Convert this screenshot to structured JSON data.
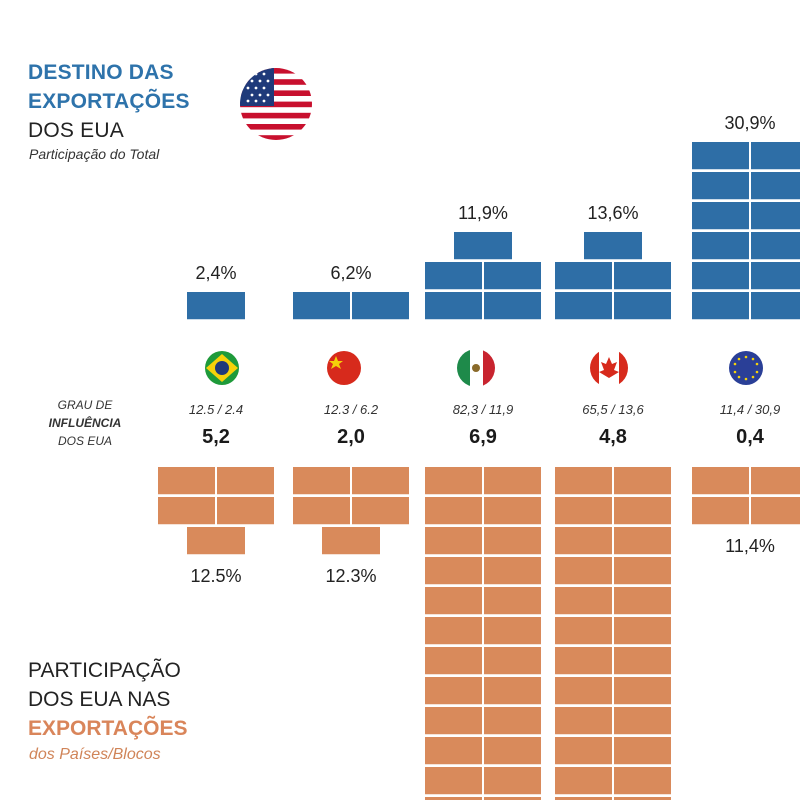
{
  "header": {
    "title_lines": [
      "DESTINO DAS",
      "EXPORTAÇÕES",
      "DOS EUA"
    ],
    "subtitle": "Participação do Total"
  },
  "influence_label": {
    "line1": "GRAU DE",
    "line2": "INFLUÊNCIA",
    "line3": "DOS EUA"
  },
  "footer": {
    "title_lines": [
      "PARTICIPAÇÃO",
      "DOS EUA NAS",
      "EXPORTAÇÕES"
    ],
    "subtitle": "dos Países/Blocos"
  },
  "colors": {
    "us_share": "#2e6ea6",
    "partner_share": "#d98a5b",
    "title_blue": "#2e73ab",
    "title_orange": "#d9855a"
  },
  "chart_data": {
    "type": "bar",
    "categories": [
      "Brasil",
      "China",
      "México",
      "Canadá",
      "União Europeia"
    ],
    "flag_icons": [
      "brazil-flag-icon",
      "china-flag-icon",
      "mexico-flag-icon",
      "canada-flag-icon",
      "eu-flag-icon"
    ],
    "series": [
      {
        "values": [
          2.4,
          6.2,
          11.9,
          13.6,
          30.9
        ],
        "labels": [
          "2,4%",
          "6,2%",
          "11,9%",
          "13,6%",
          "30,9%"
        ]
      },
      {
        "values": [
          12.5,
          12.3,
          82.3,
          65.5,
          11.4
        ],
        "labels": [
          "12.5%",
          "12.3%",
          "",
          "",
          "11,4%"
        ]
      }
    ],
    "ratio_labels": [
      "12.5 / 2.4",
      "12.3 / 6.2",
      "82,3 / 11,9",
      "65,5 / 13,6",
      "11,4 / 30,9"
    ],
    "influence_index": [
      "5,2",
      "2,0",
      "6,9",
      "4,8",
      "0,4"
    ]
  }
}
